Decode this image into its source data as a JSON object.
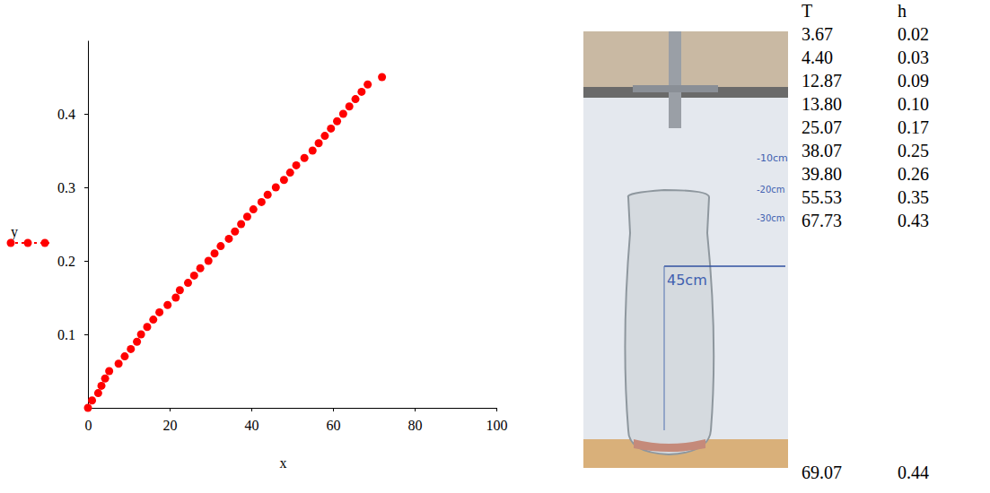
{
  "chart_data": {
    "type": "scatter",
    "x_label": "x",
    "y_label": "y",
    "x": [
      0,
      1,
      2.5,
      3.3,
      4.2,
      5.2,
      7.5,
      9,
      10.5,
      12,
      13,
      14.5,
      16,
      17.5,
      19.5,
      21.5,
      22.5,
      24.5,
      26,
      27.5,
      29.5,
      31,
      32.5,
      34.5,
      36,
      37.5,
      39,
      40.5,
      42.5,
      44,
      46,
      48,
      49.5,
      51,
      53,
      55,
      56.5,
      58,
      59.5,
      61,
      62.5,
      64,
      65.5,
      67,
      68.5,
      72
    ],
    "values": [
      0,
      0.01,
      0.02,
      0.03,
      0.04,
      0.05,
      0.06,
      0.07,
      0.08,
      0.09,
      0.1,
      0.11,
      0.12,
      0.13,
      0.14,
      0.15,
      0.16,
      0.17,
      0.18,
      0.19,
      0.2,
      0.21,
      0.22,
      0.23,
      0.24,
      0.25,
      0.26,
      0.27,
      0.28,
      0.29,
      0.3,
      0.31,
      0.32,
      0.33,
      0.34,
      0.35,
      0.36,
      0.37,
      0.38,
      0.39,
      0.4,
      0.41,
      0.42,
      0.43,
      0.44,
      0.45
    ],
    "color": "#ff0000",
    "marker": "circle",
    "line_style": "dotted",
    "xlim": [
      0,
      100
    ],
    "xticks": [
      0,
      20,
      40,
      60,
      80,
      100
    ],
    "ylim": [
      0,
      0.5
    ],
    "yticks": [
      0.1,
      0.2,
      0.3,
      0.4
    ],
    "grid": false
  },
  "photo": {
    "labels": [
      "-10cm",
      "-20cm",
      "-30cm",
      "45cm"
    ]
  },
  "table": {
    "header": [
      "T",
      "h"
    ],
    "rows": [
      [
        "3.67",
        "0.02"
      ],
      [
        "4.40",
        "0.03"
      ],
      [
        "12.87",
        "0.09"
      ],
      [
        "13.80",
        "0.10"
      ],
      [
        "25.07",
        "0.17"
      ],
      [
        "38.07",
        "0.25"
      ],
      [
        "39.80",
        "0.26"
      ],
      [
        "55.53",
        "0.35"
      ],
      [
        "67.73",
        "0.43"
      ],
      [
        "69.07",
        "0.44"
      ]
    ]
  }
}
